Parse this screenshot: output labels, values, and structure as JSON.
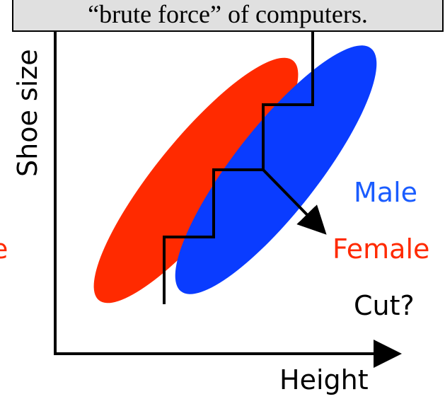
{
  "caption": "“brute force” of computers.",
  "axes": {
    "y_label": "Shoe size",
    "x_label": "Height"
  },
  "labels": {
    "male": "Male",
    "female": "Female",
    "cut": "Cut?",
    "fragment": "e"
  }
}
